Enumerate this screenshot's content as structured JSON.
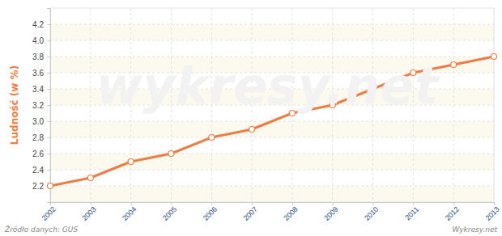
{
  "chart_data": {
    "type": "line",
    "y_label": "Ludność (w %)",
    "x": [
      2002,
      2003,
      2004,
      2005,
      2006,
      2007,
      2008,
      2009,
      2010,
      2011,
      2012,
      2013
    ],
    "values": [
      2.2,
      2.3,
      2.5,
      2.6,
      2.8,
      2.9,
      3.1,
      3.2,
      3.4,
      3.6,
      3.7,
      3.8
    ],
    "color": "#f07c45",
    "marker": "circle",
    "xlim": [
      2002,
      2013
    ],
    "xticks": [
      2002,
      2003,
      2004,
      2005,
      2006,
      2007,
      2008,
      2009,
      2010,
      2011,
      2012,
      2013
    ],
    "ylim": [
      2.0,
      4.4
    ],
    "yticks": [
      2.2,
      2.4,
      2.6,
      2.8,
      {
        "value": 3.0,
        "label": "3.0"
      },
      3.2,
      3.4,
      3.6,
      3.8,
      {
        "value": 4.0,
        "label": "4.0"
      },
      4.2
    ],
    "grid": true,
    "annotations": [
      "wykresy.net",
      "Źródło danych: GUS",
      "Wykresy.net"
    ]
  }
}
